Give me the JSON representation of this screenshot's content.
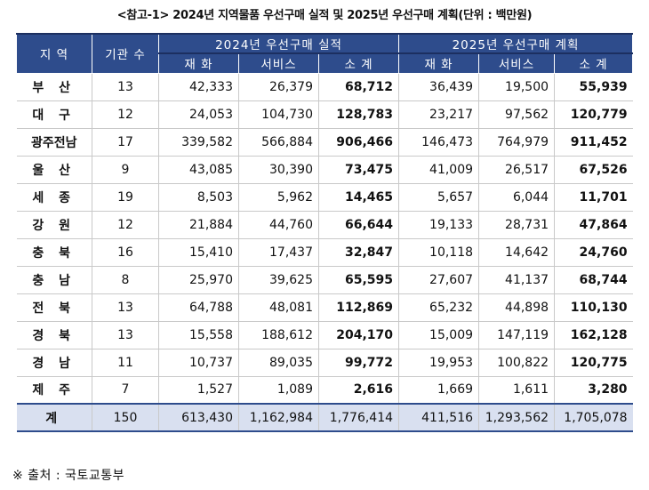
{
  "title": "<참고-1> 2024년 지역물품 우선구매 실적 및 2025년 우선구매 계획(단위 : 백만원)",
  "headers": {
    "region": "지 역",
    "agency_count": "기관 수",
    "group_2024": "2024년 우선구매 실적",
    "group_2025": "2025년 우선구매 계획",
    "goods": "재 화",
    "services": "서비스",
    "subtotal": "소 계"
  },
  "rows": [
    {
      "region": "부 산",
      "count": "13",
      "g24": "42,333",
      "s24": "26,379",
      "t24": "68,712",
      "g25": "36,439",
      "s25": "19,500",
      "t25": "55,939"
    },
    {
      "region": "대 구",
      "count": "12",
      "g24": "24,053",
      "s24": "104,730",
      "t24": "128,783",
      "g25": "23,217",
      "s25": "97,562",
      "t25": "120,779"
    },
    {
      "region": "광주전남",
      "count": "17",
      "g24": "339,582",
      "s24": "566,884",
      "t24": "906,466",
      "g25": "146,473",
      "s25": "764,979",
      "t25": "911,452"
    },
    {
      "region": "울 산",
      "count": "9",
      "g24": "43,085",
      "s24": "30,390",
      "t24": "73,475",
      "g25": "41,009",
      "s25": "26,517",
      "t25": "67,526"
    },
    {
      "region": "세 종",
      "count": "19",
      "g24": "8,503",
      "s24": "5,962",
      "t24": "14,465",
      "g25": "5,657",
      "s25": "6,044",
      "t25": "11,701"
    },
    {
      "region": "강 원",
      "count": "12",
      "g24": "21,884",
      "s24": "44,760",
      "t24": "66,644",
      "g25": "19,133",
      "s25": "28,731",
      "t25": "47,864"
    },
    {
      "region": "충 북",
      "count": "16",
      "g24": "15,410",
      "s24": "17,437",
      "t24": "32,847",
      "g25": "10,118",
      "s25": "14,642",
      "t25": "24,760"
    },
    {
      "region": "충 남",
      "count": "8",
      "g24": "25,970",
      "s24": "39,625",
      "t24": "65,595",
      "g25": "27,607",
      "s25": "41,137",
      "t25": "68,744"
    },
    {
      "region": "전 북",
      "count": "13",
      "g24": "64,788",
      "s24": "48,081",
      "t24": "112,869",
      "g25": "65,232",
      "s25": "44,898",
      "t25": "110,130"
    },
    {
      "region": "경 북",
      "count": "13",
      "g24": "15,558",
      "s24": "188,612",
      "t24": "204,170",
      "g25": "15,009",
      "s25": "147,119",
      "t25": "162,128"
    },
    {
      "region": "경 남",
      "count": "11",
      "g24": "10,737",
      "s24": "89,035",
      "t24": "99,772",
      "g25": "19,953",
      "s25": "100,822",
      "t25": "120,775"
    },
    {
      "region": "제 주",
      "count": "7",
      "g24": "1,527",
      "s24": "1,089",
      "t24": "2,616",
      "g25": "1,669",
      "s25": "1,611",
      "t25": "3,280"
    }
  ],
  "total": {
    "region": "계",
    "count": "150",
    "g24": "613,430",
    "s24": "1,162,984",
    "t24": "1,776,414",
    "g25": "411,516",
    "s25": "1,293,562",
    "t25": "1,705,078"
  },
  "source": "※ 출처 : 국토교통부"
}
